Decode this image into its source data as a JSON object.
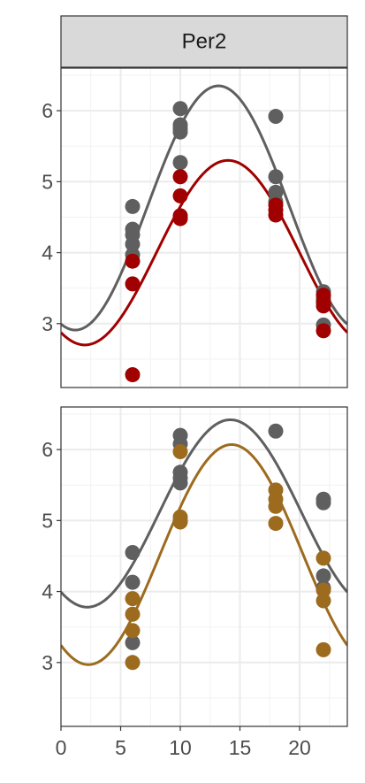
{
  "chart_data": [
    {
      "type": "scatter",
      "facet_label": "Per2",
      "x_ticks": [
        0,
        5,
        10,
        15,
        20
      ],
      "y_ticks": [
        3,
        4,
        5,
        6
      ],
      "xlim": [
        0,
        24
      ],
      "ylim": [
        2.1,
        6.6
      ],
      "grid": true,
      "series": [
        {
          "color": "#5f5f5f",
          "points": [
            {
              "x": 6,
              "y": 4.65
            },
            {
              "x": 6,
              "y": 4.33
            },
            {
              "x": 6,
              "y": 4.25
            },
            {
              "x": 6,
              "y": 4.12
            },
            {
              "x": 6,
              "y": 3.97
            },
            {
              "x": 10,
              "y": 6.03
            },
            {
              "x": 10,
              "y": 5.8
            },
            {
              "x": 10,
              "y": 5.75
            },
            {
              "x": 10,
              "y": 5.7
            },
            {
              "x": 10,
              "y": 5.27
            },
            {
              "x": 18,
              "y": 5.92
            },
            {
              "x": 18,
              "y": 5.07
            },
            {
              "x": 18,
              "y": 4.85
            },
            {
              "x": 18,
              "y": 4.72
            },
            {
              "x": 22,
              "y": 3.45
            },
            {
              "x": 22,
              "y": 3.35
            },
            {
              "x": 22,
              "y": 3.32
            },
            {
              "x": 22,
              "y": 2.98
            }
          ],
          "curve": {
            "mesor": 4.63,
            "amplitude": 1.72,
            "peak": 13.2,
            "period": 24
          }
        },
        {
          "color": "#a00000",
          "points": [
            {
              "x": 6,
              "y": 3.88
            },
            {
              "x": 6,
              "y": 3.56
            },
            {
              "x": 6,
              "y": 2.28
            },
            {
              "x": 10,
              "y": 5.07
            },
            {
              "x": 10,
              "y": 4.8
            },
            {
              "x": 10,
              "y": 4.52
            },
            {
              "x": 10,
              "y": 4.48
            },
            {
              "x": 18,
              "y": 4.67
            },
            {
              "x": 18,
              "y": 4.6
            },
            {
              "x": 18,
              "y": 4.53
            },
            {
              "x": 22,
              "y": 3.4
            },
            {
              "x": 22,
              "y": 3.3
            },
            {
              "x": 22,
              "y": 3.25
            },
            {
              "x": 22,
              "y": 2.9
            }
          ],
          "curve": {
            "mesor": 4.0,
            "amplitude": 1.3,
            "peak": 14.0,
            "period": 24
          }
        }
      ]
    },
    {
      "type": "scatter",
      "x_ticks": [
        0,
        5,
        10,
        15,
        20
      ],
      "y_ticks": [
        3,
        4,
        5,
        6
      ],
      "xlim": [
        0,
        24
      ],
      "ylim": [
        2.1,
        6.6
      ],
      "grid": true,
      "series": [
        {
          "color": "#5f5f5f",
          "points": [
            {
              "x": 6,
              "y": 4.55
            },
            {
              "x": 6,
              "y": 4.13
            },
            {
              "x": 6,
              "y": 3.28
            },
            {
              "x": 10,
              "y": 6.2
            },
            {
              "x": 10,
              "y": 6.08
            },
            {
              "x": 10,
              "y": 5.68
            },
            {
              "x": 10,
              "y": 5.6
            },
            {
              "x": 10,
              "y": 5.53
            },
            {
              "x": 10,
              "y": 5.0
            },
            {
              "x": 18,
              "y": 6.26
            },
            {
              "x": 22,
              "y": 5.3
            },
            {
              "x": 22,
              "y": 5.25
            },
            {
              "x": 22,
              "y": 4.22
            },
            {
              "x": 22,
              "y": 4.05
            }
          ],
          "curve": {
            "mesor": 5.1,
            "amplitude": 1.32,
            "peak": 14.2,
            "period": 24
          }
        },
        {
          "color": "#9c6b1e",
          "points": [
            {
              "x": 6,
              "y": 3.9
            },
            {
              "x": 6,
              "y": 3.68
            },
            {
              "x": 6,
              "y": 3.45
            },
            {
              "x": 6,
              "y": 3.0
            },
            {
              "x": 10,
              "y": 5.97
            },
            {
              "x": 10,
              "y": 5.05
            },
            {
              "x": 10,
              "y": 4.98
            },
            {
              "x": 18,
              "y": 5.43
            },
            {
              "x": 18,
              "y": 5.3
            },
            {
              "x": 18,
              "y": 5.2
            },
            {
              "x": 18,
              "y": 4.96
            },
            {
              "x": 22,
              "y": 4.47
            },
            {
              "x": 22,
              "y": 4.02
            },
            {
              "x": 22,
              "y": 3.87
            },
            {
              "x": 22,
              "y": 3.18
            }
          ],
          "curve": {
            "mesor": 4.52,
            "amplitude": 1.55,
            "peak": 14.3,
            "period": 24
          }
        }
      ]
    }
  ]
}
